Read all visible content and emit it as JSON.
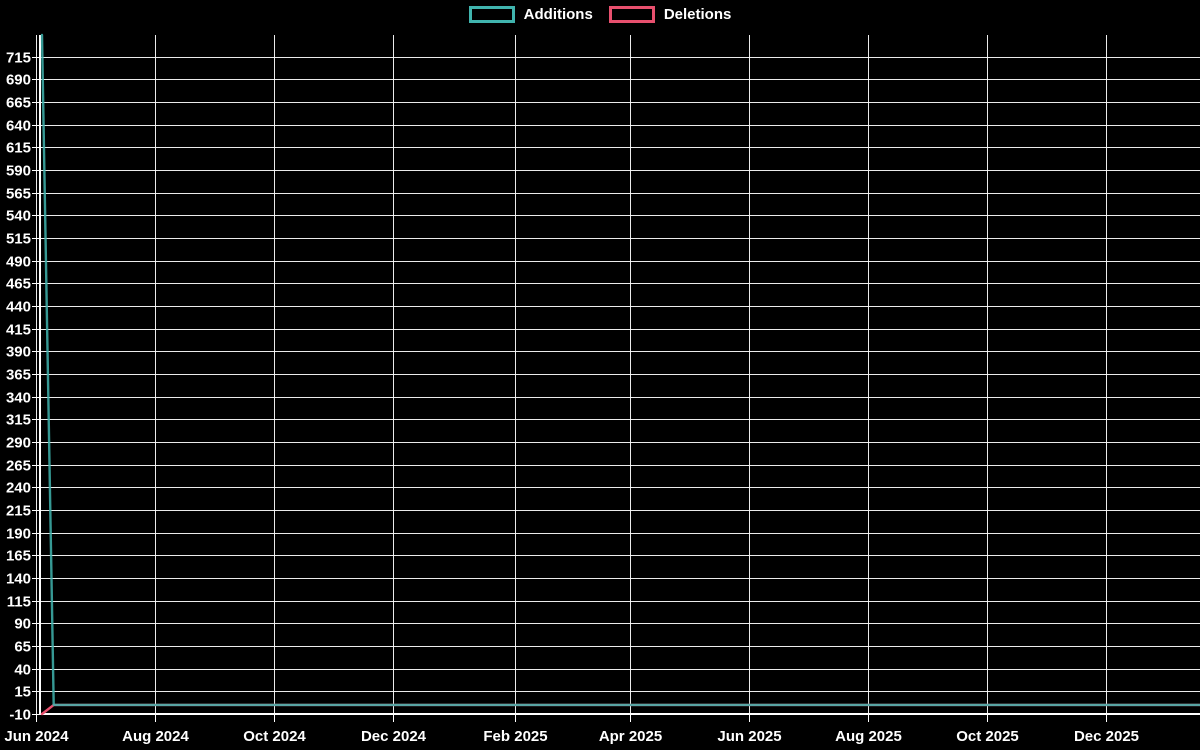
{
  "chart_data": {
    "type": "line",
    "title": "",
    "legend_position": "top-center",
    "grid": true,
    "background_color": "#000000",
    "grid_color": "#ffffff",
    "text_color": "#ffffff",
    "series": [
      {
        "name": "Additions",
        "color": "#40b4ae",
        "points": [
          [
            "2024-06-04",
            739
          ],
          [
            "2024-06-10",
            0
          ],
          [
            "2026-01-18",
            0
          ]
        ]
      },
      {
        "name": "Deletions",
        "color": "#e8506e",
        "points": [
          [
            "2024-06-04",
            -10
          ],
          [
            "2024-06-10",
            0
          ],
          [
            "2026-01-18",
            0
          ]
        ]
      }
    ],
    "x_axis": {
      "type": "time",
      "range": [
        "2024-06-03",
        "2026-01-18"
      ],
      "ticks": [
        {
          "label": "Jun 2024",
          "date": "2024-06-01"
        },
        {
          "label": "Aug 2024",
          "date": "2024-08-01"
        },
        {
          "label": "Oct 2024",
          "date": "2024-10-01"
        },
        {
          "label": "Dec 2024",
          "date": "2024-12-01"
        },
        {
          "label": "Feb 2025",
          "date": "2025-02-01"
        },
        {
          "label": "Apr 2025",
          "date": "2025-04-01"
        },
        {
          "label": "Jun 2025",
          "date": "2025-06-01"
        },
        {
          "label": "Aug 2025",
          "date": "2025-08-01"
        },
        {
          "label": "Oct 2025",
          "date": "2025-10-01"
        },
        {
          "label": "Dec 2025",
          "date": "2025-12-01"
        }
      ]
    },
    "y_axis": {
      "range": [
        -10,
        739
      ],
      "tick_step": 25,
      "ticks": [
        -10,
        15,
        40,
        65,
        90,
        115,
        140,
        165,
        190,
        215,
        240,
        265,
        290,
        315,
        340,
        365,
        390,
        415,
        440,
        465,
        490,
        515,
        540,
        565,
        590,
        615,
        640,
        665,
        690,
        715
      ]
    }
  }
}
